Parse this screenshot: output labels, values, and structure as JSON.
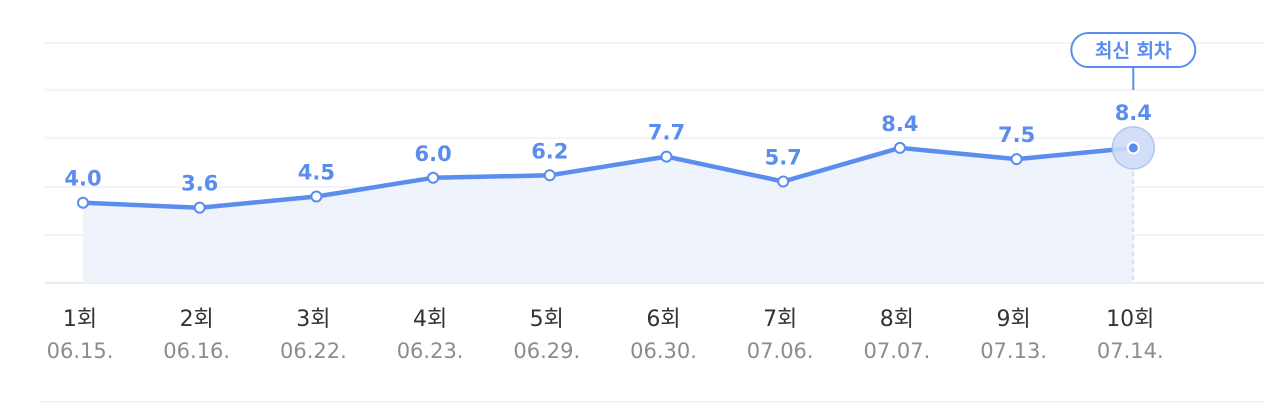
{
  "chart_data": {
    "type": "line",
    "title": "",
    "xlabel": "",
    "ylabel": "",
    "categories": [
      "1회",
      "2회",
      "3회",
      "4회",
      "5회",
      "6회",
      "7회",
      "8회",
      "9회",
      "10회"
    ],
    "dates": [
      "06.15.",
      "06.16.",
      "06.22.",
      "06.23.",
      "06.29.",
      "06.30.",
      "07.06.",
      "07.07.",
      "07.13.",
      "07.14."
    ],
    "values": [
      4.0,
      3.6,
      4.5,
      6.0,
      6.2,
      7.7,
      5.7,
      8.4,
      7.5,
      8.4
    ],
    "value_labels": [
      "4.0",
      "3.6",
      "4.5",
      "6.0",
      "6.2",
      "7.7",
      "5.7",
      "8.4",
      "7.5",
      "8.4"
    ],
    "latest_badge": "최신 회차",
    "grid": true,
    "legend": "none",
    "colors": {
      "line": "#5b8def",
      "area": "#eef3fc"
    }
  }
}
